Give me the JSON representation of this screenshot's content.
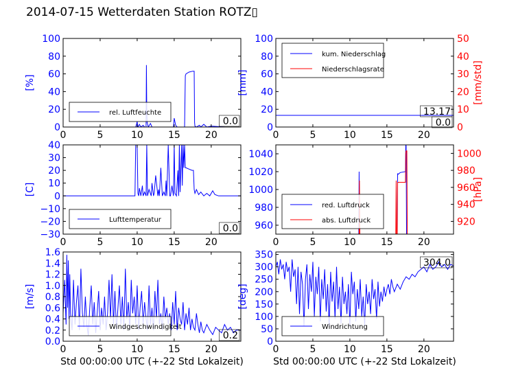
{
  "title": "2014-07-15 Wetterdaten Station ROTZ▯",
  "colors": {
    "blue": "#0000ff",
    "red": "#ff0000",
    "black": "#000000"
  },
  "chart_data": [
    {
      "id": "humidity",
      "type": "line",
      "xlim": [
        0,
        24
      ],
      "xticks": [
        "0",
        "5",
        "10",
        "15",
        "20"
      ],
      "ylim": [
        0,
        100
      ],
      "yticks": [
        "0",
        "20",
        "40",
        "60",
        "80",
        "100"
      ],
      "ylabel": "[%]",
      "legend": [
        "rel. Luftfeuchte"
      ],
      "value_box": "0.0",
      "series": [
        {
          "name": "rel. Luftfeuchte",
          "color": "#0000ff",
          "x": [
            0,
            9.8,
            10.0,
            10.1,
            10.3,
            10.5,
            10.8,
            11.0,
            11.2,
            11.25,
            11.3,
            11.35,
            11.5,
            11.8,
            12,
            14.9,
            15.0,
            15.2,
            15.4,
            16,
            16.4,
            16.5,
            16.6,
            17.0,
            17.5,
            17.7,
            17.75,
            17.8,
            18,
            18.4,
            18.6,
            19,
            19.4,
            20,
            22,
            24
          ],
          "y": [
            0,
            0,
            6,
            0,
            3,
            0,
            2,
            0,
            0,
            70,
            20,
            5,
            0,
            4,
            0,
            0,
            10,
            2,
            0,
            0,
            0,
            58,
            60,
            62,
            63,
            63,
            5,
            1,
            0,
            2,
            0,
            3,
            0,
            1,
            0,
            0
          ]
        }
      ]
    },
    {
      "id": "precip",
      "type": "line",
      "xlim": [
        0,
        24
      ],
      "xticks": [
        "0",
        "5",
        "10",
        "15",
        "20"
      ],
      "ylim": [
        0,
        100
      ],
      "yticks": [
        "0",
        "20",
        "40",
        "60",
        "80",
        "100"
      ],
      "ylabel": "[mm]",
      "ylim2": [
        0,
        50
      ],
      "yticks2": [
        "0",
        "10",
        "20",
        "30",
        "40",
        "50"
      ],
      "ylabel2": "[mm/std]",
      "legend": [
        "kum. Niederschlag",
        "Niederschlagsrate"
      ],
      "value_box": "13.17",
      "value_box2": "0.0",
      "series": [
        {
          "name": "kum. Niederschlag",
          "color": "#0000ff",
          "x": [
            0,
            24
          ],
          "y": [
            13.17,
            13.17
          ]
        },
        {
          "name": "Niederschlagsrate",
          "color": "#ff0000",
          "axis": "right",
          "x": [
            0,
            24
          ],
          "y": [
            0,
            0
          ]
        }
      ]
    },
    {
      "id": "temperature",
      "type": "line",
      "xlim": [
        0,
        24
      ],
      "xticks": [
        "0",
        "5",
        "10",
        "15",
        "20"
      ],
      "ylim": [
        -30,
        40
      ],
      "yticks": [
        "−30",
        "−20",
        "−10",
        "0",
        "10",
        "20",
        "30",
        "40"
      ],
      "ylabel": "[C]",
      "legend": [
        "Lufttemperatur"
      ],
      "value_box": "0.0",
      "series": [
        {
          "name": "Lufttemperatur",
          "color": "#0000ff",
          "x": [
            0,
            9.7,
            9.8,
            10.0,
            10.1,
            10.2,
            10.3,
            10.5,
            10.7,
            10.8,
            11.0,
            11.2,
            11.3,
            11.4,
            11.6,
            11.9,
            12.0,
            12.2,
            12.3,
            12.5,
            12.8,
            12.9,
            13.0,
            13.2,
            13.4,
            13.6,
            13.8,
            13.9,
            14.0,
            14.2,
            14.4,
            14.5,
            14.7,
            14.9,
            15.0,
            15.1,
            15.3,
            15.5,
            15.6,
            15.7,
            15.8,
            16.0,
            16.1,
            16.2,
            16.3,
            16.4,
            16.5,
            16.6,
            17.0,
            17.4,
            17.6,
            17.7,
            17.8,
            18.0,
            18.3,
            18.6,
            19.0,
            19.4,
            19.8,
            20.2,
            20.5,
            21,
            22,
            24
          ],
          "y": [
            0,
            0,
            40,
            40,
            2,
            0,
            6,
            0,
            8,
            0,
            3,
            0,
            40,
            0,
            5,
            0,
            10,
            0,
            2,
            16,
            0,
            5,
            0,
            22,
            0,
            3,
            0,
            12,
            0,
            40,
            0,
            0,
            8,
            0,
            40,
            2,
            0,
            20,
            0,
            40,
            3,
            40,
            8,
            40,
            22,
            40,
            22,
            22,
            21,
            20,
            20,
            5,
            2,
            5,
            1,
            3,
            0,
            2,
            0,
            4,
            1,
            0,
            0,
            0
          ]
        }
      ]
    },
    {
      "id": "pressure",
      "type": "line",
      "xlim": [
        0,
        24
      ],
      "xticks": [
        "0",
        "5",
        "10",
        "15",
        "20"
      ],
      "ylim": [
        950,
        1050
      ],
      "yticks": [
        "960",
        "980",
        "1000",
        "1020",
        "1040"
      ],
      "ylim2": [
        905,
        1010
      ],
      "yticks2": [
        "920",
        "940",
        "960",
        "980",
        "1000"
      ],
      "ylabel2": "[hPa]",
      "legend": [
        "red. Luftdruck",
        "abs. Luftdruck"
      ],
      "series": [
        {
          "name": "red. Luftdruck",
          "color": "#0000ff",
          "x": [
            11.2,
            11.25,
            11.3,
            16.4,
            16.45,
            16.5,
            16.8,
            17.5,
            17.55,
            17.6,
            17.65
          ],
          "y": [
            950,
            1020,
            950,
            950,
            1018,
            1017,
            1019,
            1020,
            1050,
            1049,
            950
          ]
        },
        {
          "name": "abs. Luftdruck",
          "color": "#ff0000",
          "axis": "right",
          "x": [
            11.25,
            11.3,
            11.35,
            16.2,
            16.25,
            16.3,
            16.4,
            16.45,
            16.5,
            17.5,
            17.55,
            17.6,
            17.7,
            17.75
          ],
          "y": [
            905,
            968,
            905,
            905,
            968,
            905,
            905,
            965,
            966,
            966,
            1000,
            1003,
            1003,
            905
          ]
        }
      ]
    },
    {
      "id": "windspeed",
      "type": "line",
      "xlim": [
        0,
        24
      ],
      "xticks": [
        "0",
        "5",
        "10",
        "15",
        "20"
      ],
      "ylim": [
        0,
        1.6
      ],
      "yticks": [
        "0.0",
        "0.2",
        "0.4",
        "0.6",
        "0.8",
        "1.0",
        "1.2",
        "1.4",
        "1.6"
      ],
      "ylabel": "[m/s]",
      "xlabel": "Std 00:00:00 UTC (+-22 Std Lokalzeit)",
      "legend": [
        "Windgeschwindigkeit"
      ],
      "value_box": "0.2",
      "series": [
        {
          "name": "Windgeschwindigkeit",
          "color": "#0000ff",
          "x": [
            0,
            0.2,
            0.4,
            0.5,
            0.6,
            0.7,
            0.8,
            0.9,
            1.0,
            1.2,
            1.4,
            1.6,
            1.8,
            2.0,
            2.2,
            2.4,
            2.6,
            2.8,
            3.0,
            3.2,
            3.4,
            3.6,
            3.8,
            4.0,
            4.2,
            4.4,
            4.6,
            4.8,
            5.0,
            5.2,
            5.4,
            5.6,
            5.8,
            6.0,
            6.2,
            6.4,
            6.6,
            6.8,
            7.0,
            7.2,
            7.4,
            7.6,
            7.8,
            8.0,
            8.2,
            8.4,
            8.6,
            8.8,
            9.0,
            9.2,
            9.4,
            9.6,
            9.8,
            10.0,
            10.2,
            10.4,
            10.6,
            10.8,
            11.0,
            11.2,
            11.4,
            11.6,
            11.8,
            12.0,
            12.2,
            12.4,
            12.6,
            12.8,
            13.0,
            13.2,
            13.4,
            13.6,
            13.8,
            14.0,
            14.2,
            14.4,
            14.6,
            14.8,
            15.0,
            15.2,
            15.4,
            15.6,
            15.8,
            16.0,
            16.2,
            16.4,
            16.6,
            16.8,
            17.0,
            17.2,
            17.4,
            17.6,
            17.8,
            18.0,
            18.2,
            18.4,
            18.6,
            18.8,
            19.0,
            19.4,
            19.8,
            20.2,
            20.6,
            21.0,
            21.4,
            21.8,
            22.2,
            22.6,
            23.0,
            23.4,
            24
          ],
          "y": [
            0.5,
            1.1,
            0.3,
            1.55,
            0.6,
            1.45,
            0.4,
            1.2,
            0.5,
            0.2,
            1.1,
            0.3,
            0.7,
            1.0,
            0.2,
            1.3,
            0.5,
            0.25,
            0.8,
            0.3,
            0.1,
            0.6,
            1.0,
            0.3,
            0.7,
            0.15,
            0.5,
            0.9,
            0.2,
            0.6,
            0.3,
            0.8,
            0.2,
            0.5,
            1.1,
            0.4,
            1.2,
            0.3,
            0.9,
            0.2,
            0.6,
            1.0,
            0.3,
            0.8,
            0.2,
            1.3,
            0.4,
            0.7,
            0.2,
            1.1,
            0.5,
            0.8,
            0.3,
            1.0,
            0.2,
            0.6,
            0.9,
            0.3,
            0.7,
            0.4,
            0.2,
            1.0,
            0.3,
            0.6,
            0.2,
            0.9,
            0.4,
            1.1,
            0.3,
            0.5,
            0.2,
            0.8,
            0.4,
            0.6,
            0.3,
            0.5,
            0.2,
            0.7,
            0.3,
            0.9,
            0.2,
            0.6,
            0.4,
            0.3,
            0.7,
            0.2,
            0.5,
            0.3,
            0.6,
            0.2,
            0.4,
            0.25,
            0.2,
            0.5,
            0.3,
            0.15,
            0.35,
            0.2,
            0.15,
            0.3,
            0.2,
            0.12,
            0.25,
            0.2,
            0.15,
            0.3,
            0.2,
            0.25,
            0.15,
            0.2,
            0.2
          ]
        }
      ]
    },
    {
      "id": "winddir",
      "type": "line",
      "xlim": [
        0,
        24
      ],
      "xticks": [
        "0",
        "5",
        "10",
        "15",
        "20"
      ],
      "ylim": [
        0,
        360
      ],
      "yticks": [
        "0",
        "50",
        "100",
        "150",
        "200",
        "250",
        "300",
        "350"
      ],
      "ylabel": "[deg]",
      "xlabel": "Std 00:00:00 UTC (+-22 Std Lokalzeit)",
      "legend": [
        "Windrichtung"
      ],
      "value_box": "304.0",
      "series": [
        {
          "name": "Windrichtung",
          "color": "#0000ff",
          "x": [
            0,
            0.2,
            0.4,
            0.6,
            0.8,
            1.0,
            1.2,
            1.4,
            1.6,
            1.8,
            2.0,
            2.2,
            2.4,
            2.6,
            2.8,
            3.0,
            3.2,
            3.4,
            3.6,
            3.8,
            4.0,
            4.2,
            4.4,
            4.6,
            4.8,
            5.0,
            5.2,
            5.4,
            5.6,
            5.8,
            6.0,
            6.2,
            6.4,
            6.6,
            6.8,
            7.0,
            7.2,
            7.4,
            7.6,
            7.8,
            8.0,
            8.2,
            8.4,
            8.6,
            8.8,
            9.0,
            9.2,
            9.4,
            9.6,
            9.8,
            10.0,
            10.2,
            10.4,
            10.6,
            10.8,
            11.0,
            11.2,
            11.4,
            11.6,
            11.8,
            12.0,
            12.2,
            12.4,
            12.6,
            12.8,
            13.0,
            13.2,
            13.4,
            13.6,
            13.8,
            14.0,
            14.2,
            14.4,
            14.6,
            14.8,
            15.0,
            15.2,
            15.4,
            15.6,
            15.8,
            16.0,
            16.4,
            16.8,
            17.2,
            17.6,
            18.0,
            18.4,
            18.8,
            19.2,
            19.6,
            20.0,
            20.4,
            20.8,
            21.2,
            21.6,
            22.0,
            22.4,
            22.8,
            23.2,
            23.6,
            24
          ],
          "y": [
            300,
            320,
            270,
            330,
            290,
            310,
            250,
            320,
            280,
            300,
            200,
            330,
            260,
            290,
            150,
            300,
            110,
            280,
            230,
            60,
            250,
            310,
            130,
            270,
            200,
            320,
            100,
            260,
            190,
            300,
            80,
            250,
            170,
            290,
            120,
            230,
            60,
            280,
            160,
            240,
            90,
            300,
            130,
            220,
            70,
            260,
            150,
            200,
            110,
            230,
            60,
            280,
            190,
            240,
            80,
            210,
            130,
            250,
            100,
            180,
            60,
            230,
            150,
            200,
            110,
            250,
            170,
            210,
            90,
            240,
            140,
            200,
            160,
            220,
            180,
            210,
            230,
            190,
            250,
            220,
            200,
            230,
            210,
            240,
            260,
            250,
            270,
            260,
            280,
            290,
            300,
            280,
            310,
            290,
            300,
            320,
            300,
            310,
            290,
            310,
            305
          ]
        }
      ]
    }
  ]
}
